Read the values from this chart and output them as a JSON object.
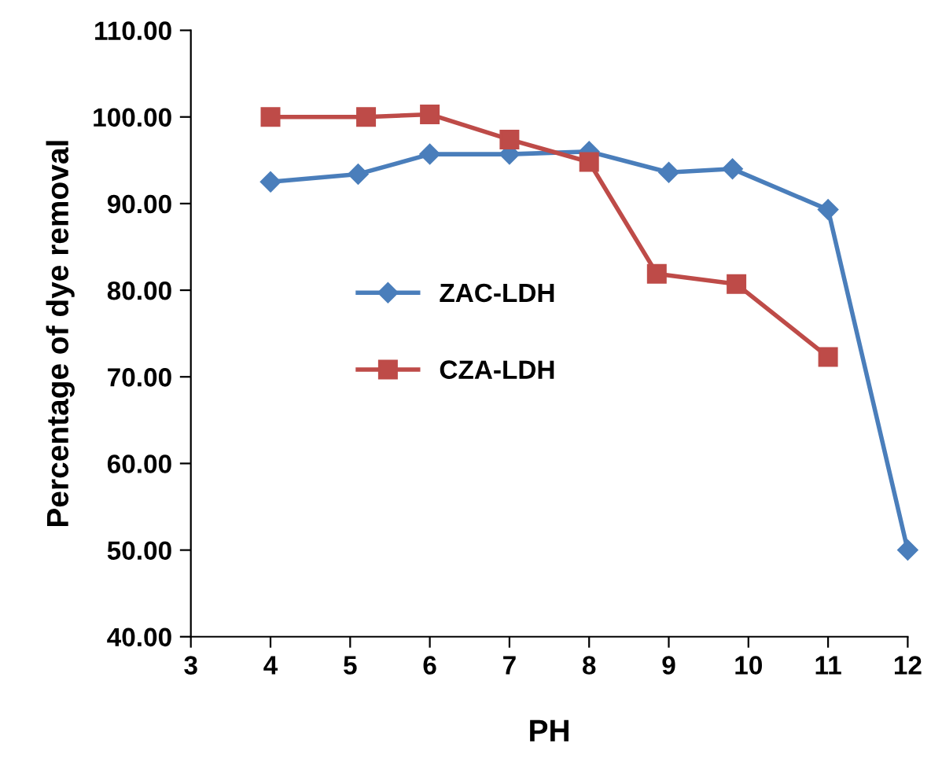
{
  "chart_data": {
    "type": "line",
    "xlabel": "PH",
    "ylabel": "Percentage of dye removal",
    "xlim": [
      3,
      12
    ],
    "xticks": [
      3,
      4,
      5,
      6,
      7,
      8,
      9,
      10,
      11,
      12
    ],
    "ylim": [
      40,
      110
    ],
    "yticks": [
      {
        "value": 40,
        "label": "40.00"
      },
      {
        "value": 50,
        "label": "50.00"
      },
      {
        "value": 60,
        "label": "60.00"
      },
      {
        "value": 70,
        "label": "70.00"
      },
      {
        "value": 80,
        "label": "80.00"
      },
      {
        "value": 90,
        "label": "90.00"
      },
      {
        "value": 100,
        "label": "100.00"
      },
      {
        "value": 110,
        "label": "110.00"
      }
    ],
    "grid": false,
    "legend": "center left",
    "line_style": "solid",
    "series": [
      {
        "name": "ZAC-LDH",
        "color": "#4a7ebb",
        "marker": "diamond",
        "x": [
          4.0,
          5.1,
          6.0,
          7.0,
          8.0,
          9.0,
          9.8,
          11.0,
          12.0
        ],
        "values": [
          92.5,
          93.4,
          95.7,
          95.7,
          96.0,
          93.6,
          94.0,
          89.3,
          50.0
        ]
      },
      {
        "name": "CZA-LDH",
        "color": "#be4b48",
        "marker": "square",
        "x": [
          4.0,
          5.2,
          6.0,
          7.0,
          8.0,
          8.85,
          9.85,
          11.0
        ],
        "values": [
          100.0,
          100.0,
          100.3,
          97.4,
          94.8,
          81.9,
          80.7,
          72.3
        ]
      }
    ]
  }
}
